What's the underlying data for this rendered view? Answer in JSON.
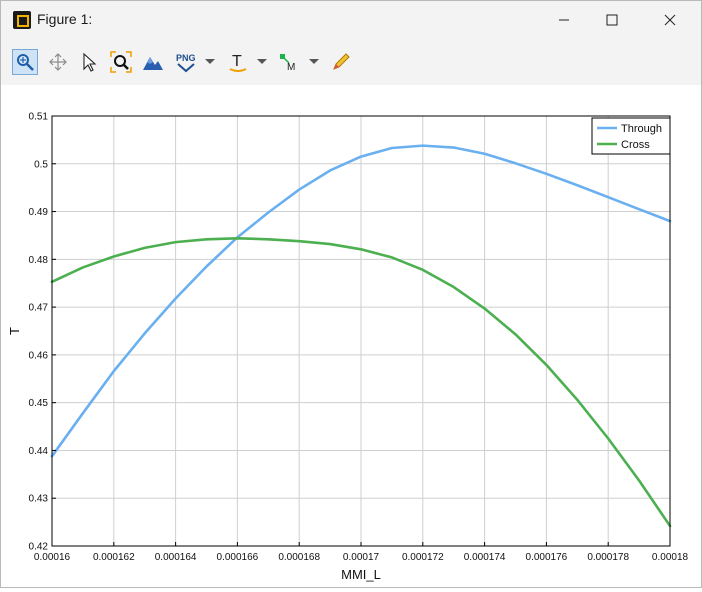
{
  "window": {
    "title": "Figure 1:"
  },
  "toolbar": {
    "items": [
      {
        "name": "zoom-icon",
        "selected": true
      },
      {
        "name": "pan-icon"
      },
      {
        "name": "pointer-icon"
      },
      {
        "name": "zoom-box-icon"
      },
      {
        "name": "mountain-icon"
      },
      {
        "name": "png-export-icon",
        "label": "PNG"
      },
      {
        "name": "text-icon",
        "label": "T"
      },
      {
        "name": "marker-icon",
        "label": "M"
      },
      {
        "name": "pencil-icon"
      }
    ]
  },
  "chart_data": {
    "type": "line",
    "xlabel": "MMI_L",
    "ylabel": "T",
    "xlim": [
      0.00016,
      0.00018
    ],
    "ylim": [
      0.42,
      0.51
    ],
    "x_ticks": [
      "0.00016",
      "0.000162",
      "0.000164",
      "0.000166",
      "0.000168",
      "0.00017",
      "0.000172",
      "0.000174",
      "0.000176",
      "0.000178",
      "0.00018"
    ],
    "y_ticks": [
      "0.42",
      "0.43",
      "0.44",
      "0.45",
      "0.46",
      "0.47",
      "0.48",
      "0.49",
      "0.5",
      "0.51"
    ],
    "grid": true,
    "legend_position": "top-right",
    "x": [
      0.00016,
      0.000161,
      0.000162,
      0.000163,
      0.000164,
      0.000165,
      0.000166,
      0.000167,
      0.000168,
      0.000169,
      0.00017,
      0.000171,
      0.000172,
      0.000173,
      0.000174,
      0.000175,
      0.000176,
      0.000177,
      0.000178,
      0.000179,
      0.00018
    ],
    "series": [
      {
        "name": "Through",
        "color": "#6ab0f0",
        "values": [
          0.4388,
          0.4478,
          0.4566,
          0.4645,
          0.4718,
          0.4785,
          0.4846,
          0.4898,
          0.4946,
          0.4986,
          0.5015,
          0.5033,
          0.5038,
          0.5034,
          0.5021,
          0.5001,
          0.4979,
          0.4955,
          0.493,
          0.4905,
          0.488
        ]
      },
      {
        "name": "Cross",
        "color": "#4caf50",
        "values": [
          0.4753,
          0.4783,
          0.4806,
          0.4824,
          0.4836,
          0.4842,
          0.4844,
          0.4842,
          0.4838,
          0.4832,
          0.4821,
          0.4804,
          0.4778,
          0.4742,
          0.4697,
          0.4643,
          0.4579,
          0.4506,
          0.4425,
          0.4337,
          0.4242
        ]
      }
    ]
  }
}
